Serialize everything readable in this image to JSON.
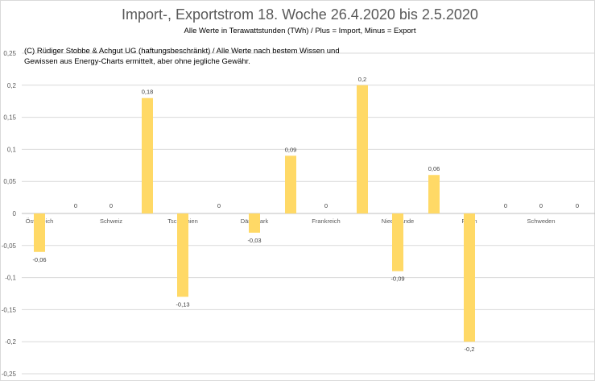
{
  "chart_data": {
    "type": "bar",
    "title": "Import-, Exportstrom 18. Woche 26.4.2020 bis 2.5.2020",
    "subtitle": "Alle Werte in Terawattstunden (TWh) / Plus = Import, Minus = Export",
    "note": "(C) Rüdiger Stobbe & Achgut UG (haftungsbeschränkt) / Alle Werte nach bestem Wissen und Gewissen aus Energy-Charts ermittelt, aber ohne jegliche Gewähr.",
    "categories": [
      "Österreich",
      "Schweiz",
      "Tschechien",
      "Dänemark",
      "Frankreich",
      "Niederlande",
      "Polen",
      "Schweden"
    ],
    "series": [
      {
        "name": "Export",
        "values": [
          -0.06,
          0,
          -0.13,
          -0.03,
          0,
          -0.09,
          -0.2,
          0
        ]
      },
      {
        "name": "Import",
        "values": [
          0,
          0.18,
          0,
          0.09,
          0.2,
          0.06,
          0,
          0
        ]
      }
    ],
    "ylim": [
      -0.25,
      0.25
    ],
    "yticks": [
      "0,25",
      "0,2",
      "0,15",
      "0,1",
      "0,05",
      "0",
      "-0,05",
      "-0,1",
      "-0,15",
      "-0,2",
      "-0,25"
    ],
    "grid": true,
    "bar_color": "#FFD966"
  }
}
